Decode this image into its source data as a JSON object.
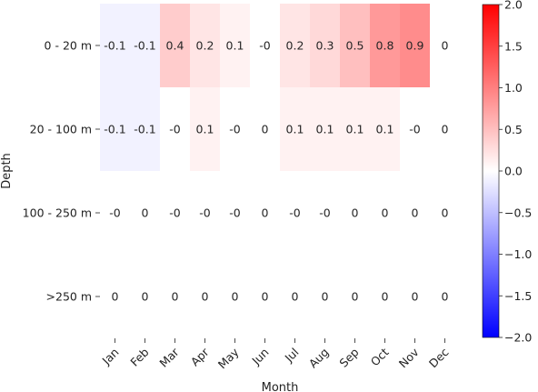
{
  "chart_data": {
    "type": "heatmap",
    "xlabel": "Month",
    "ylabel": "Depth",
    "x_categories": [
      "Jan",
      "Feb",
      "Mar",
      "Apr",
      "May",
      "Jun",
      "Jul",
      "Aug",
      "Sep",
      "Oct",
      "Nov",
      "Dec"
    ],
    "y_categories": [
      "0 - 20 m",
      "20 - 100 m",
      "100 - 250 m",
      ">250 m"
    ],
    "values": [
      [
        -0.1,
        -0.1,
        0.4,
        0.2,
        0.1,
        -0.0,
        0.2,
        0.3,
        0.5,
        0.8,
        0.9,
        0
      ],
      [
        -0.1,
        -0.1,
        -0.0,
        0.1,
        -0.0,
        0,
        0.1,
        0.1,
        0.1,
        0.1,
        -0.0,
        0
      ],
      [
        -0.0,
        0,
        -0.0,
        -0.0,
        -0.0,
        0,
        -0.0,
        -0.0,
        0,
        0,
        0,
        0
      ],
      [
        0,
        0,
        0,
        0,
        0,
        0,
        0,
        0,
        0,
        0,
        0,
        0
      ]
    ],
    "labels": [
      [
        "-0.1",
        "-0.1",
        "0.4",
        "0.2",
        "0.1",
        "-0",
        "0.2",
        "0.3",
        "0.5",
        "0.8",
        "0.9",
        "0"
      ],
      [
        "-0.1",
        "-0.1",
        "-0",
        "0.1",
        "-0",
        "0",
        "0.1",
        "0.1",
        "0.1",
        "0.1",
        "-0",
        "0"
      ],
      [
        "-0",
        "0",
        "-0",
        "-0",
        "-0",
        "0",
        "-0",
        "-0",
        "0",
        "0",
        "0",
        "0"
      ],
      [
        "0",
        "0",
        "0",
        "0",
        "0",
        "0",
        "0",
        "0",
        "0",
        "0",
        "0",
        "0"
      ]
    ],
    "colorbar": {
      "range": [
        -2.0,
        2.0
      ],
      "colormap": "bwr",
      "ticks": [
        2.0,
        1.5,
        1.0,
        0.5,
        0.0,
        -0.5,
        -1.0,
        -1.5,
        -2.0
      ],
      "tick_labels": [
        "2.0",
        "1.5",
        "1.0",
        "0.5",
        "0.0",
        "−0.5",
        "−1.0",
        "−1.5",
        "−2.0"
      ]
    },
    "grid": false
  }
}
